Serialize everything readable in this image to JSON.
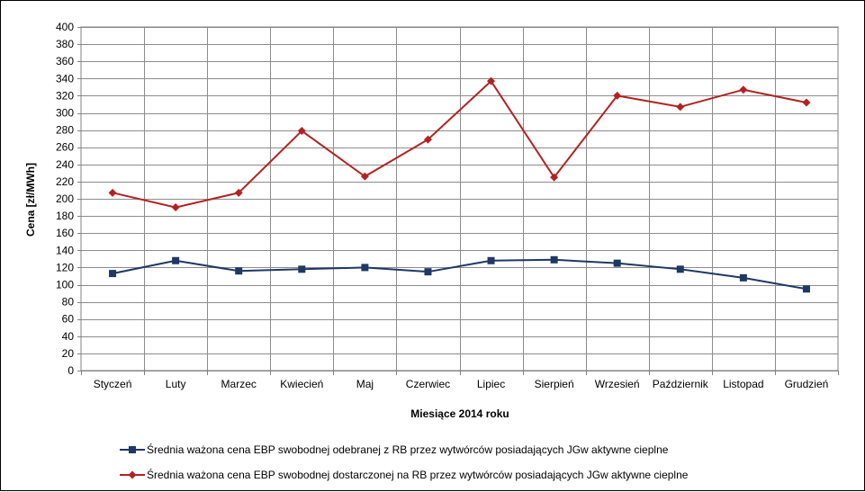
{
  "chart_data": {
    "type": "line",
    "xlabel": "Miesiące 2014 roku",
    "ylabel": "Cena [zł/MWh]",
    "ylim": [
      0,
      400
    ],
    "ystep": 20,
    "grid": true,
    "legend_position": "bottom",
    "categories": [
      "Styczeń",
      "Luty",
      "Marzec",
      "Kwiecień",
      "Maj",
      "Czerwiec",
      "Lipiec",
      "Sierpień",
      "Wrzesień",
      "Październik",
      "Listopad",
      "Grudzień"
    ],
    "series": [
      {
        "name": "Średnia ważona cena EBP swobodnej odebranej z RB przez wytwórców posiadających JGw aktywne cieplne",
        "color": "#1F3864",
        "marker": "square",
        "values": [
          113,
          128,
          116,
          118,
          120,
          115,
          128,
          129,
          125,
          118,
          108,
          95
        ]
      },
      {
        "name": "Średnia ważona cena EBP swobodnej dostarczonej na RB przez wytwórców posiadających JGw aktywne cieplne",
        "color": "#B22222",
        "marker": "diamond",
        "values": [
          207,
          190,
          207,
          279,
          226,
          269,
          337,
          225,
          320,
          307,
          327,
          312
        ]
      }
    ]
  }
}
